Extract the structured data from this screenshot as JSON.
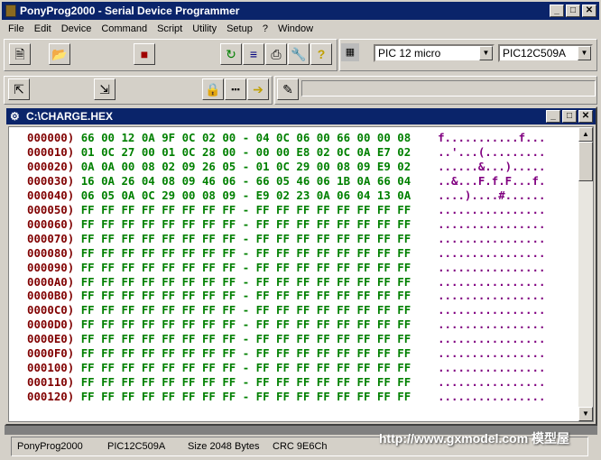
{
  "window": {
    "title": "PonyProg2000 - Serial Device Programmer",
    "minimize": "_",
    "maximize": "□",
    "close": "✕"
  },
  "menu": [
    "File",
    "Edit",
    "Device",
    "Command",
    "Script",
    "Utility",
    "Setup",
    "?",
    "Window"
  ],
  "toolbar": {
    "family_select": "PIC 12 micro",
    "device_select": "PIC12C509A"
  },
  "child": {
    "title": "C:\\CHARGE.HEX"
  },
  "rows": [
    {
      "addr": "000000)",
      "hex": "66 00 12 0A 9F 0C 02 00 - 04 0C 06 00 66 00 00 08",
      "ascii": "f...........f..."
    },
    {
      "addr": "000010)",
      "hex": "01 0C 27 00 01 0C 28 00 - 00 00 E8 02 0C 0A E7 02",
      "ascii": "..'...(........."
    },
    {
      "addr": "000020)",
      "hex": "0A 0A 00 08 02 09 26 05 - 01 0C 29 00 08 09 E9 02",
      "ascii": "......&...)....."
    },
    {
      "addr": "000030)",
      "hex": "16 0A 26 04 08 09 46 06 - 66 05 46 06 1B 0A 66 04",
      "ascii": "..&...F.f.F...f."
    },
    {
      "addr": "000040)",
      "hex": "06 05 0A 0C 29 00 08 09 - E9 02 23 0A 06 04 13 0A",
      "ascii": "....)....#......"
    },
    {
      "addr": "000050)",
      "hex": "FF FF FF FF FF FF FF FF - FF FF FF FF FF FF FF FF",
      "ascii": "................"
    },
    {
      "addr": "000060)",
      "hex": "FF FF FF FF FF FF FF FF - FF FF FF FF FF FF FF FF",
      "ascii": "................"
    },
    {
      "addr": "000070)",
      "hex": "FF FF FF FF FF FF FF FF - FF FF FF FF FF FF FF FF",
      "ascii": "................"
    },
    {
      "addr": "000080)",
      "hex": "FF FF FF FF FF FF FF FF - FF FF FF FF FF FF FF FF",
      "ascii": "................"
    },
    {
      "addr": "000090)",
      "hex": "FF FF FF FF FF FF FF FF - FF FF FF FF FF FF FF FF",
      "ascii": "................"
    },
    {
      "addr": "0000A0)",
      "hex": "FF FF FF FF FF FF FF FF - FF FF FF FF FF FF FF FF",
      "ascii": "................"
    },
    {
      "addr": "0000B0)",
      "hex": "FF FF FF FF FF FF FF FF - FF FF FF FF FF FF FF FF",
      "ascii": "................"
    },
    {
      "addr": "0000C0)",
      "hex": "FF FF FF FF FF FF FF FF - FF FF FF FF FF FF FF FF",
      "ascii": "................"
    },
    {
      "addr": "0000D0)",
      "hex": "FF FF FF FF FF FF FF FF - FF FF FF FF FF FF FF FF",
      "ascii": "................"
    },
    {
      "addr": "0000E0)",
      "hex": "FF FF FF FF FF FF FF FF - FF FF FF FF FF FF FF FF",
      "ascii": "................"
    },
    {
      "addr": "0000F0)",
      "hex": "FF FF FF FF FF FF FF FF - FF FF FF FF FF FF FF FF",
      "ascii": "................"
    },
    {
      "addr": "000100)",
      "hex": "FF FF FF FF FF FF FF FF - FF FF FF FF FF FF FF FF",
      "ascii": "................"
    },
    {
      "addr": "000110)",
      "hex": "FF FF FF FF FF FF FF FF - FF FF FF FF FF FF FF FF",
      "ascii": "................"
    },
    {
      "addr": "000120)",
      "hex": "FF FF FF FF FF FF FF FF - FF FF FF FF FF FF FF FF",
      "ascii": "................"
    }
  ],
  "status": {
    "app": "PonyProg2000",
    "device": "PIC12C509A",
    "size": "Size  2048 Bytes",
    "crc": "CRC  9E6Ch"
  },
  "watermark": "http://www.gxmodel.com 模型屋"
}
